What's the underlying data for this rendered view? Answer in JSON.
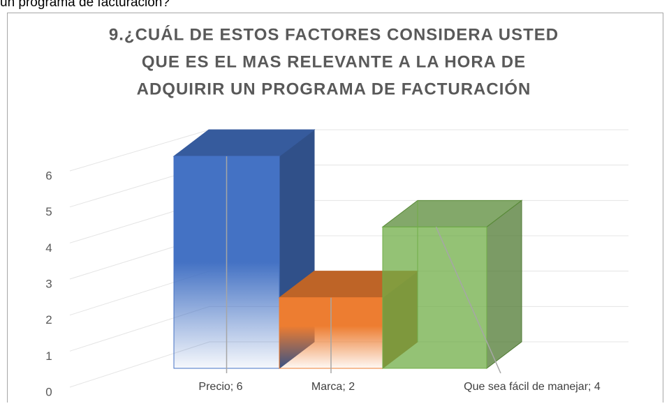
{
  "header": {
    "text": "un programa de facturación?"
  },
  "chart_data": {
    "type": "bar3d",
    "title": [
      "9.¿CUÁL DE ESTOS FACTORES CONSIDERA USTED",
      "QUE ES EL MAS RELEVANTE A LA HORA DE",
      "ADQUIRIR UN PROGRAMA DE FACTURACIÓN"
    ],
    "categories": [
      "Precio",
      "Marca",
      "Que sea fácil de manejar"
    ],
    "values": [
      6,
      2,
      4
    ],
    "value_labels": [
      "Precio; 6",
      "Marca; 2",
      "Que sea fácil de manejar; 4"
    ],
    "colors": [
      "#4472c4",
      "#ed7d31",
      "#70ad47"
    ],
    "ylim": [
      0,
      6
    ],
    "yticks": [
      0,
      1,
      2,
      3,
      4,
      5,
      6
    ],
    "grid": true
  }
}
